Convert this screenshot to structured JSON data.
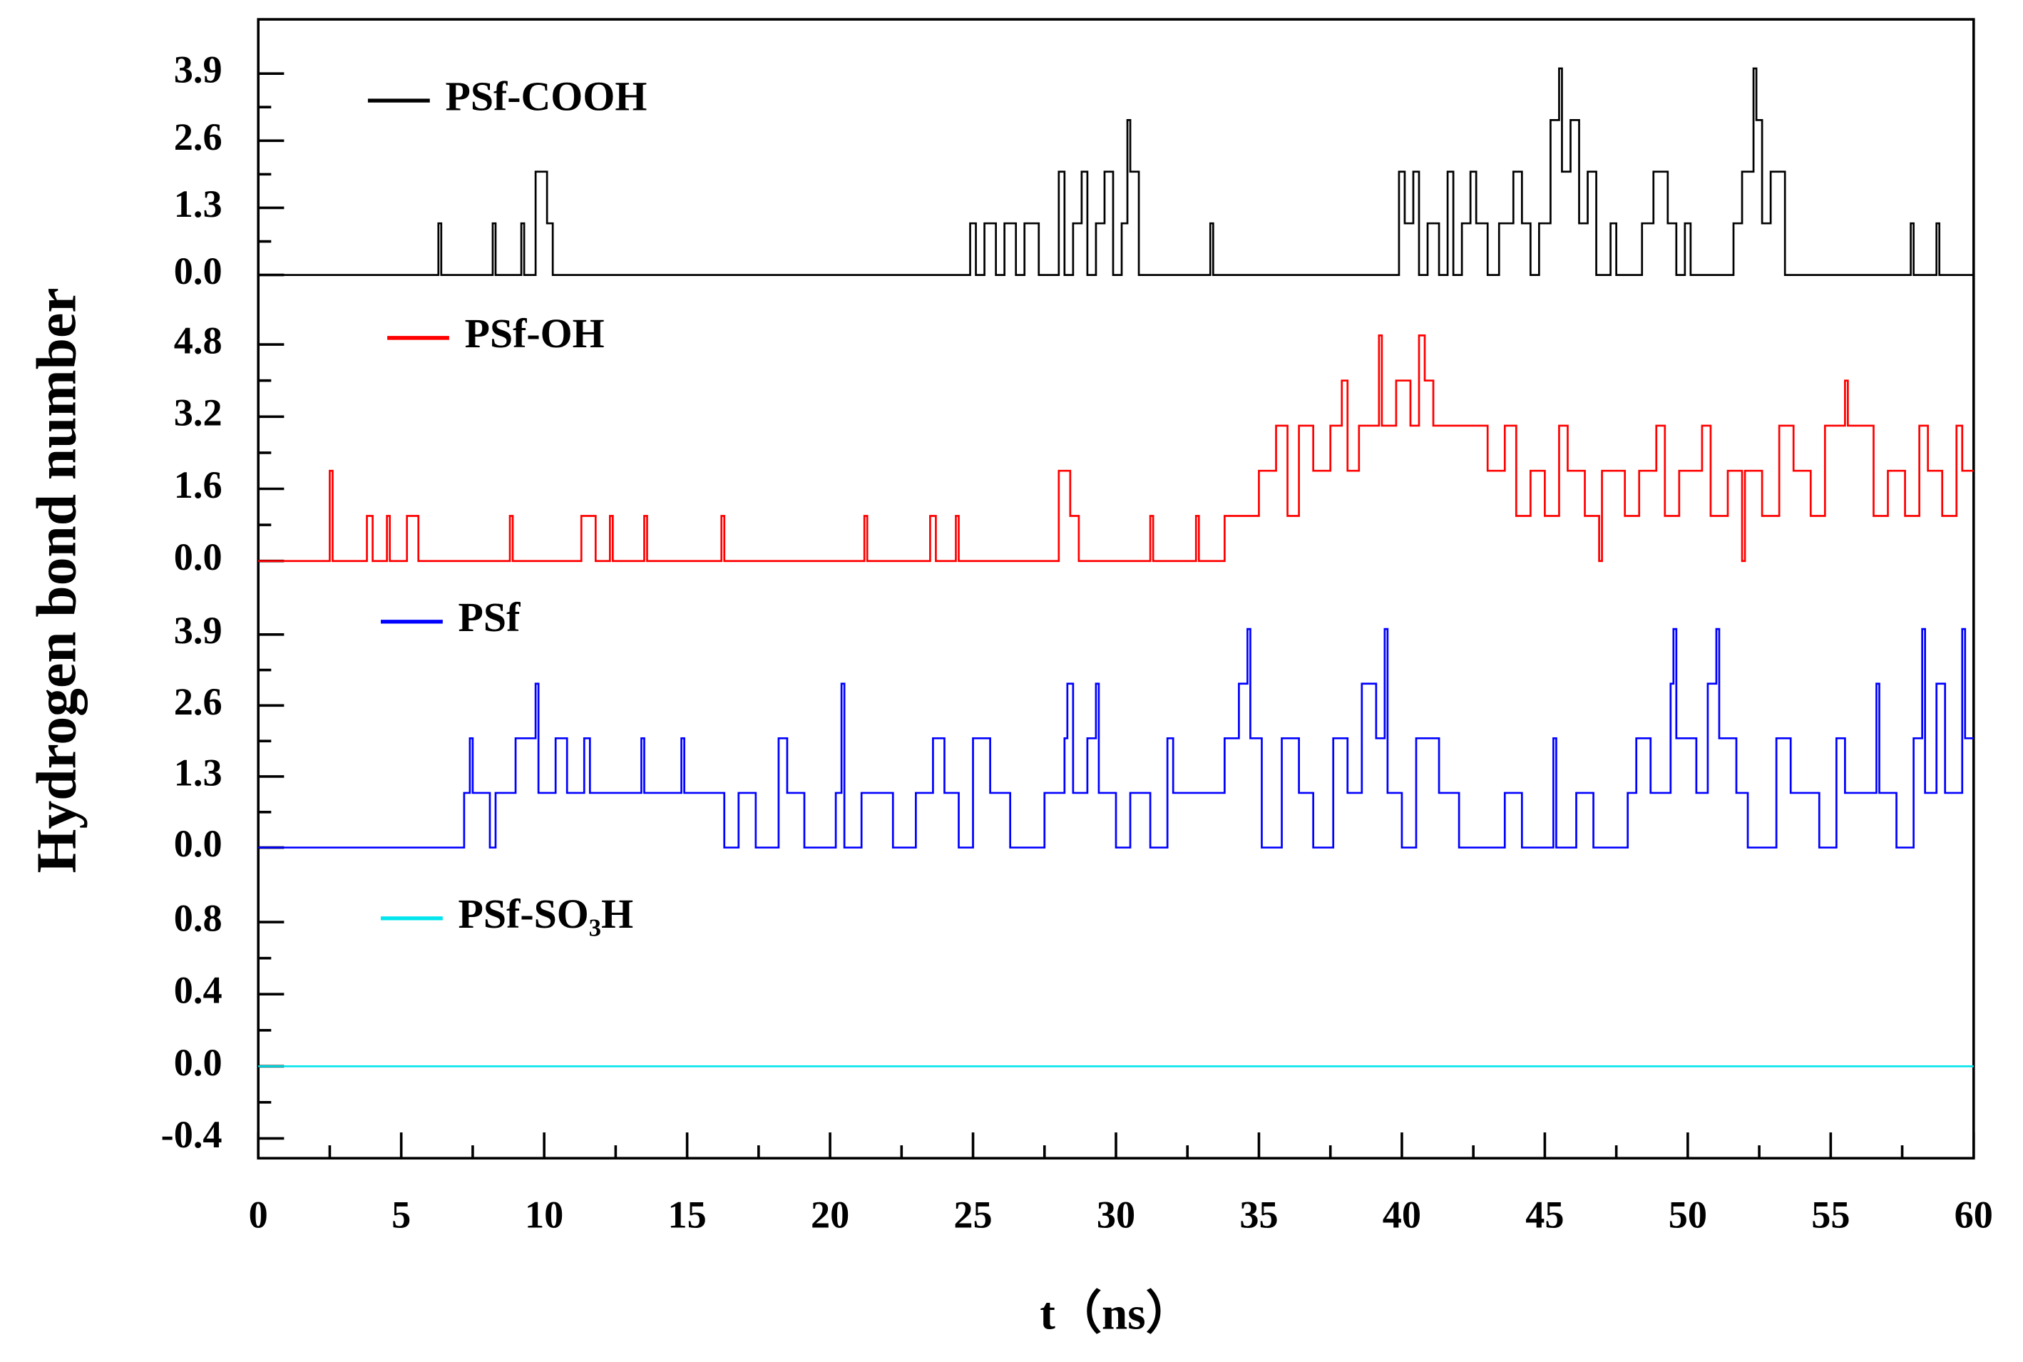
{
  "chart_data": {
    "type": "line",
    "step": "post",
    "xlabel": "t（ns）",
    "ylabel": "Hydrogen bond number",
    "xlim": [
      0,
      60
    ],
    "xticks": [
      0,
      5,
      10,
      15,
      20,
      25,
      30,
      35,
      40,
      45,
      50,
      55,
      60
    ],
    "panels": [
      {
        "ylim": [
          -0.42,
          4.95
        ],
        "yticks": [
          {
            "value": 0,
            "label": "0.0"
          },
          1.3,
          2.6,
          3.9
        ],
        "series": [
          {
            "name": "PSf-COOH",
            "color": "#000000",
            "x": [
              0,
              6.3,
              6.4,
              8.2,
              8.3,
              9.2,
              9.3,
              9.7,
              10.1,
              10.3,
              24.9,
              25.1,
              25.4,
              25.8,
              26.1,
              26.5,
              26.8,
              27.3,
              28.0,
              28.2,
              28.5,
              28.8,
              29.0,
              29.3,
              29.6,
              29.9,
              30.2,
              30.4,
              30.5,
              30.8,
              33.3,
              33.4,
              39.9,
              40.1,
              40.4,
              40.6,
              40.9,
              41.3,
              41.6,
              41.8,
              42.1,
              42.4,
              42.6,
              43.0,
              43.4,
              43.9,
              44.2,
              44.5,
              44.8,
              45.2,
              45.5,
              45.6,
              45.9,
              46.2,
              46.5,
              46.8,
              47.3,
              47.5,
              48.4,
              48.8,
              49.3,
              49.6,
              49.9,
              50.1,
              51.6,
              51.9,
              52.3,
              52.4,
              52.6,
              52.9,
              53.4,
              57.8,
              57.9,
              58.7,
              58.8,
              60
            ],
            "values": [
              0,
              1,
              0,
              1,
              0,
              1,
              0,
              2,
              1,
              0,
              1,
              0,
              1,
              0,
              1,
              0,
              1,
              0,
              2,
              0,
              1,
              2,
              0,
              1,
              2,
              0,
              1,
              3,
              2,
              0,
              1,
              0,
              2,
              1,
              2,
              0,
              1,
              0,
              2,
              0,
              1,
              2,
              1,
              0,
              1,
              2,
              1,
              0,
              1,
              3,
              4,
              2,
              3,
              1,
              2,
              0,
              1,
              0,
              1,
              2,
              1,
              0,
              1,
              0,
              1,
              2,
              4,
              3,
              1,
              2,
              0,
              1,
              0,
              1,
              0,
              0
            ]
          }
        ]
      },
      {
        "ylim": [
          -0.43,
          5.86
        ],
        "yticks": [
          {
            "value": 0,
            "label": "0.0"
          },
          1.6,
          3.2,
          4.8
        ],
        "series": [
          {
            "name": "PSf-OH",
            "color": "#ff0000",
            "x": [
              0,
              2.5,
              2.6,
              3.8,
              4.0,
              4.5,
              4.6,
              5.2,
              5.6,
              8.8,
              8.9,
              11.3,
              11.8,
              12.3,
              12.4,
              13.5,
              13.6,
              16.2,
              16.3,
              21.2,
              21.3,
              23.5,
              23.7,
              24.4,
              24.5,
              28.0,
              28.4,
              28.7,
              31.2,
              31.3,
              32.8,
              32.9,
              33.8,
              35.0,
              35.6,
              36.0,
              36.4,
              36.9,
              37.5,
              37.9,
              38.1,
              38.5,
              39.2,
              39.3,
              39.8,
              40.3,
              40.6,
              40.8,
              41.1,
              43.0,
              43.6,
              44.0,
              44.5,
              45.0,
              45.5,
              45.8,
              46.4,
              46.9,
              47.0,
              47.8,
              48.3,
              48.9,
              49.2,
              49.7,
              50.5,
              50.8,
              51.4,
              51.9,
              52.0,
              52.6,
              53.2,
              53.7,
              54.3,
              54.8,
              55.5,
              55.6,
              56.5,
              57.0,
              57.6,
              58.1,
              58.4,
              58.9,
              59.4,
              59.6,
              60
            ],
            "values": [
              0,
              2,
              0,
              1,
              0,
              1,
              0,
              1,
              0,
              1,
              0,
              1,
              0,
              1,
              0,
              1,
              0,
              1,
              0,
              1,
              0,
              1,
              0,
              1,
              0,
              2,
              1,
              0,
              1,
              0,
              1,
              0,
              1,
              2,
              3,
              1,
              3,
              2,
              3,
              4,
              2,
              3,
              5,
              3,
              4,
              3,
              5,
              4,
              3,
              2,
              3,
              1,
              2,
              1,
              3,
              2,
              1,
              0,
              2,
              1,
              2,
              3,
              1,
              2,
              3,
              1,
              2,
              0,
              2,
              1,
              3,
              2,
              1,
              3,
              4,
              3,
              1,
              2,
              1,
              3,
              2,
              1,
              3,
              2,
              2
            ]
          }
        ]
      },
      {
        "ylim": [
          -0.54,
          4.89
        ],
        "yticks": [
          {
            "value": 0,
            "label": "0.0"
          },
          1.3,
          2.6,
          3.9
        ],
        "series": [
          {
            "name": "PSf",
            "color": "#0000ff",
            "x": [
              0,
              7.2,
              7.4,
              7.5,
              8.1,
              8.3,
              9.0,
              9.7,
              9.8,
              10.4,
              10.8,
              11.4,
              11.6,
              13.4,
              13.5,
              14.8,
              14.9,
              16.3,
              16.8,
              17.4,
              18.2,
              18.5,
              19.1,
              20.2,
              20.4,
              20.5,
              21.1,
              22.2,
              23.0,
              23.6,
              24.0,
              24.5,
              25.0,
              25.6,
              26.3,
              27.5,
              28.2,
              28.3,
              28.5,
              29.0,
              29.3,
              29.4,
              30.0,
              30.5,
              31.2,
              31.8,
              32.0,
              33.8,
              34.3,
              34.6,
              34.7,
              35.1,
              35.8,
              36.4,
              36.9,
              37.6,
              38.1,
              38.6,
              39.1,
              39.4,
              39.5,
              40.0,
              40.5,
              41.3,
              42.0,
              43.6,
              44.2,
              45.3,
              45.4,
              46.1,
              46.7,
              47.9,
              48.2,
              48.7,
              49.4,
              49.5,
              49.6,
              50.3,
              50.7,
              51.0,
              51.1,
              51.7,
              52.1,
              53.1,
              53.6,
              54.6,
              55.2,
              55.5,
              56.6,
              56.7,
              57.3,
              57.9,
              58.2,
              58.3,
              58.7,
              59.0,
              59.6,
              59.7,
              60
            ],
            "values": [
              0,
              1,
              2,
              1,
              0,
              1,
              2,
              3,
              1,
              2,
              1,
              2,
              1,
              2,
              1,
              2,
              1,
              0,
              1,
              0,
              2,
              1,
              0,
              1,
              3,
              0,
              1,
              0,
              1,
              2,
              1,
              0,
              2,
              1,
              0,
              1,
              2,
              3,
              1,
              2,
              3,
              1,
              0,
              1,
              0,
              2,
              1,
              2,
              3,
              4,
              2,
              0,
              2,
              1,
              0,
              2,
              1,
              3,
              2,
              4,
              1,
              0,
              2,
              1,
              0,
              1,
              0,
              2,
              0,
              1,
              0,
              1,
              2,
              1,
              3,
              4,
              2,
              1,
              3,
              4,
              2,
              1,
              0,
              2,
              1,
              0,
              2,
              1,
              3,
              1,
              0,
              2,
              4,
              1,
              3,
              1,
              4,
              2,
              2
            ]
          }
        ]
      },
      {
        "ylim": [
          -0.51,
          1.05
        ],
        "yticks": [
          -0.4,
          {
            "value": 0,
            "label": "0.0"
          },
          0.4,
          0.8
        ],
        "series": [
          {
            "name": "PSf-SO₃H",
            "color": "#00e5ee",
            "x": [
              0,
              60
            ],
            "values": [
              0,
              0
            ]
          }
        ]
      }
    ]
  }
}
